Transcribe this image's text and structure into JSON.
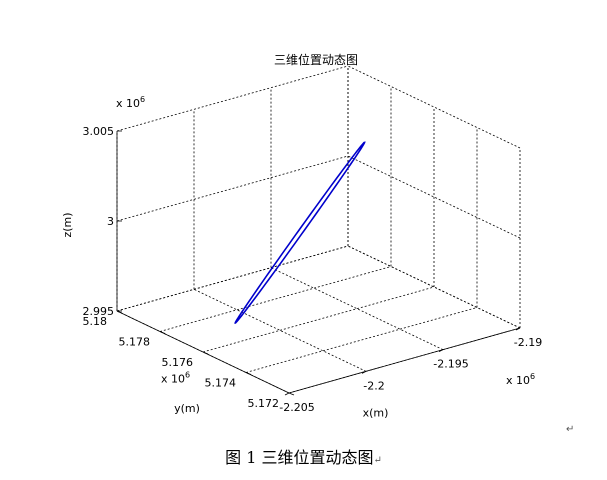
{
  "caption": {
    "label": "图 1  三维位置动态图",
    "para_mark": "↵"
  },
  "chart_data": {
    "type": "line",
    "projection": "3d",
    "title": "三维位置动态图",
    "xlabel": "x(m)",
    "ylabel": "y(m)",
    "zlabel": "z(m)",
    "x_exponent": "x 10^6",
    "y_exponent": "x 10^6",
    "z_exponent": "x 10^6",
    "xlim": [
      -2.205,
      -2.19
    ],
    "ylim": [
      5.172,
      5.18
    ],
    "zlim": [
      2.995,
      3.005
    ],
    "x_ticks": [
      "-2.205",
      "-2.2",
      "-2.195",
      "-2.19"
    ],
    "y_ticks": [
      "5.172",
      "5.174",
      "5.176",
      "5.178",
      "5.18"
    ],
    "z_ticks": [
      "2.995",
      "3",
      "3.005"
    ],
    "grid": true,
    "line_color": "#0000cc",
    "series": [
      {
        "shape": "closed ellipse",
        "end_a": {
          "x": -2.2015,
          "y": 5.177,
          "z": 2.9952
        },
        "end_b": {
          "x": -2.192,
          "y": 5.1778,
          "z": 3.0025
        },
        "minor_axis": {
          "x": 0.00032,
          "y": 2e-05,
          "z": 5e-05
        }
      }
    ]
  }
}
